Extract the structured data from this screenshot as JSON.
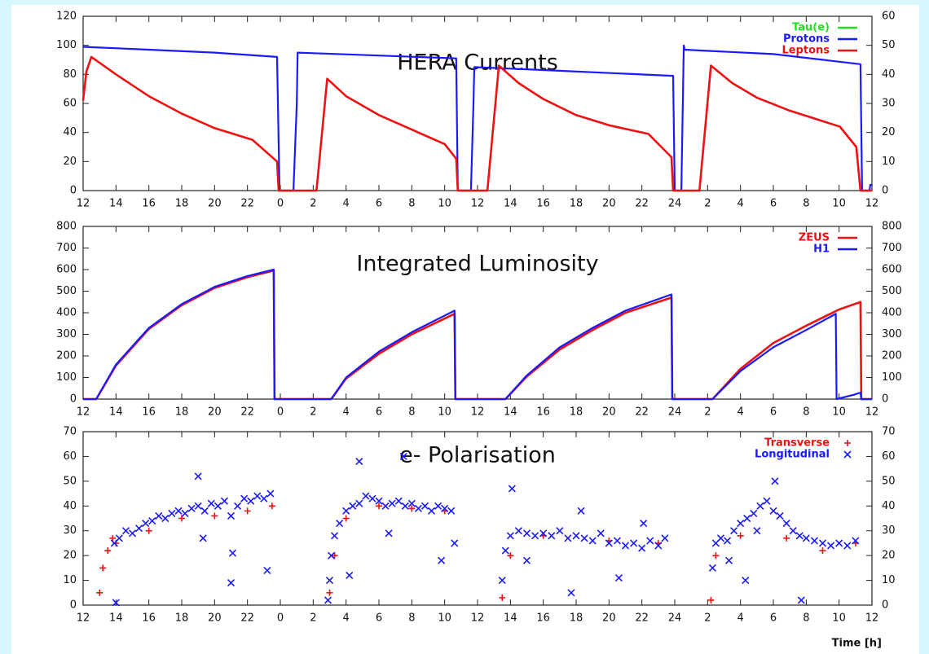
{
  "chart_data": [
    {
      "type": "line",
      "title": "HERA Currents",
      "legend": "top-right",
      "xlim": [
        12,
        60
      ],
      "xticks": [
        {
          "value": 12,
          "label": "12"
        },
        {
          "value": 14,
          "label": "14"
        },
        {
          "value": 16,
          "label": "16"
        },
        {
          "value": 18,
          "label": "18"
        },
        {
          "value": 20,
          "label": "20"
        },
        {
          "value": 22,
          "label": "22"
        },
        {
          "value": 24,
          "label": "0"
        },
        {
          "value": 26,
          "label": "2"
        },
        {
          "value": 28,
          "label": "4"
        },
        {
          "value": 30,
          "label": "6"
        },
        {
          "value": 32,
          "label": "8"
        },
        {
          "value": 34,
          "label": "10"
        },
        {
          "value": 36,
          "label": "12"
        },
        {
          "value": 38,
          "label": "14"
        },
        {
          "value": 40,
          "label": "16"
        },
        {
          "value": 42,
          "label": "18"
        },
        {
          "value": 44,
          "label": "20"
        },
        {
          "value": 46,
          "label": "22"
        },
        {
          "value": 48,
          "label": "24"
        },
        {
          "value": 50,
          "label": "2"
        },
        {
          "value": 52,
          "label": "4"
        },
        {
          "value": 54,
          "label": "6"
        },
        {
          "value": 56,
          "label": "8"
        },
        {
          "value": 58,
          "label": "10"
        },
        {
          "value": 60,
          "label": "12"
        }
      ],
      "ylim": [
        0,
        120
      ],
      "yticks": [
        0,
        20,
        40,
        60,
        80,
        100,
        120
      ],
      "y2lim": [
        0,
        60
      ],
      "y2ticks": [
        0,
        10,
        20,
        30,
        40,
        50,
        60
      ],
      "series": [
        {
          "name": "Tau(e)",
          "color": "#22dd22",
          "x": [],
          "values": []
        },
        {
          "name": "Protons",
          "color": "#1a1aff",
          "x": [
            12,
            16,
            20,
            23.8,
            23.95,
            24.8,
            25.0,
            25.05,
            30,
            34.7,
            34.8,
            35.6,
            35.75,
            35.8,
            40,
            47.9,
            48.0,
            48.4,
            48.55,
            48.6,
            54,
            59.3,
            59.4,
            59.85,
            59.9,
            60
          ],
          "values": [
            99,
            97,
            95,
            92,
            0,
            0,
            60,
            95,
            93,
            91,
            0,
            0,
            60,
            85,
            83,
            79,
            0,
            0,
            100,
            97,
            94,
            87,
            0,
            0,
            4,
            4
          ]
        },
        {
          "name": "Leptons",
          "color": "#ee1111",
          "x": [
            12,
            12.2,
            12.5,
            14,
            16,
            18,
            20,
            22.3,
            23.8,
            23.9,
            26.2,
            26.85,
            28,
            30,
            32,
            34,
            34.7,
            34.8,
            36.6,
            37.3,
            38.5,
            40,
            42,
            44,
            46.4,
            47.8,
            47.9,
            49.5,
            50.2,
            51.5,
            53,
            55,
            58.05,
            59.05,
            59.3,
            60
          ],
          "values": [
            62,
            82,
            92,
            80,
            65,
            53,
            43,
            35,
            20,
            0,
            0,
            77,
            65,
            52,
            42,
            32,
            22,
            0,
            0,
            86,
            74,
            63,
            52,
            45,
            39,
            23,
            0,
            0,
            86,
            74,
            64,
            55,
            44,
            30,
            0,
            0
          ]
        }
      ]
    },
    {
      "type": "line",
      "title": "Integrated Luminosity",
      "legend": "top-right",
      "mirror_yticks": true,
      "xlim": [
        12,
        60
      ],
      "xticks": [
        {
          "value": 12,
          "label": "12"
        },
        {
          "value": 14,
          "label": "14"
        },
        {
          "value": 16,
          "label": "16"
        },
        {
          "value": 18,
          "label": "18"
        },
        {
          "value": 20,
          "label": "20"
        },
        {
          "value": 22,
          "label": "22"
        },
        {
          "value": 24,
          "label": "0"
        },
        {
          "value": 26,
          "label": "2"
        },
        {
          "value": 28,
          "label": "4"
        },
        {
          "value": 30,
          "label": "6"
        },
        {
          "value": 32,
          "label": "8"
        },
        {
          "value": 34,
          "label": "10"
        },
        {
          "value": 36,
          "label": "12"
        },
        {
          "value": 38,
          "label": "14"
        },
        {
          "value": 40,
          "label": "16"
        },
        {
          "value": 42,
          "label": "18"
        },
        {
          "value": 44,
          "label": "20"
        },
        {
          "value": 46,
          "label": "22"
        },
        {
          "value": 48,
          "label": "24"
        },
        {
          "value": 50,
          "label": "2"
        },
        {
          "value": 52,
          "label": "4"
        },
        {
          "value": 54,
          "label": "6"
        },
        {
          "value": 56,
          "label": "8"
        },
        {
          "value": 58,
          "label": "10"
        },
        {
          "value": 60,
          "label": "12"
        }
      ],
      "ylim": [
        0,
        800
      ],
      "yticks": [
        0,
        100,
        200,
        300,
        400,
        500,
        600,
        700,
        800
      ],
      "series": [
        {
          "name": "ZEUS",
          "color": "#ee1111",
          "x": [
            12,
            12.8,
            14,
            16,
            18,
            20,
            22,
            23.6,
            23.65,
            27.1,
            28,
            30,
            32,
            34.6,
            34.65,
            37.7,
            39,
            41,
            43,
            45,
            47.8,
            47.85,
            50.3,
            52,
            54,
            56,
            58,
            59.3,
            59.35,
            60
          ],
          "values": [
            0,
            0,
            155,
            325,
            435,
            515,
            565,
            595,
            0,
            0,
            95,
            210,
            300,
            395,
            0,
            0,
            105,
            230,
            320,
            400,
            470,
            0,
            0,
            140,
            260,
            340,
            415,
            450,
            0,
            0
          ]
        },
        {
          "name": "H1",
          "color": "#1a1aff",
          "x": [
            12,
            12.8,
            14,
            16,
            18,
            20,
            22,
            23.6,
            23.65,
            27.1,
            28,
            30,
            32,
            34.6,
            34.65,
            37.7,
            39,
            41,
            43,
            45,
            47.8,
            47.85,
            50.3,
            52,
            54,
            56,
            57.8,
            57.85,
            58.9,
            59.3,
            59.35,
            60
          ],
          "values": [
            0,
            0,
            160,
            330,
            440,
            520,
            570,
            600,
            0,
            0,
            100,
            220,
            310,
            410,
            0,
            0,
            110,
            240,
            330,
            410,
            485,
            0,
            0,
            130,
            240,
            320,
            395,
            0,
            20,
            30,
            0,
            0
          ]
        }
      ]
    },
    {
      "type": "scatter",
      "title": "e- Polarisation",
      "legend": "top-right",
      "mirror_yticks": true,
      "xlabel": "Time [h]",
      "xlim": [
        12,
        60
      ],
      "xticks": [
        {
          "value": 12,
          "label": "12"
        },
        {
          "value": 14,
          "label": "14"
        },
        {
          "value": 16,
          "label": "16"
        },
        {
          "value": 18,
          "label": "18"
        },
        {
          "value": 20,
          "label": "20"
        },
        {
          "value": 22,
          "label": "22"
        },
        {
          "value": 24,
          "label": "0"
        },
        {
          "value": 26,
          "label": "2"
        },
        {
          "value": 28,
          "label": "4"
        },
        {
          "value": 30,
          "label": "6"
        },
        {
          "value": 32,
          "label": "8"
        },
        {
          "value": 34,
          "label": "10"
        },
        {
          "value": 36,
          "label": "12"
        },
        {
          "value": 38,
          "label": "14"
        },
        {
          "value": 40,
          "label": "16"
        },
        {
          "value": 42,
          "label": "18"
        },
        {
          "value": 44,
          "label": "20"
        },
        {
          "value": 46,
          "label": "22"
        },
        {
          "value": 48,
          "label": "24"
        },
        {
          "value": 50,
          "label": "2"
        },
        {
          "value": 52,
          "label": "4"
        },
        {
          "value": 54,
          "label": "6"
        },
        {
          "value": 56,
          "label": "8"
        },
        {
          "value": 58,
          "label": "10"
        },
        {
          "value": 60,
          "label": "12"
        }
      ],
      "ylim": [
        0,
        70
      ],
      "yticks": [
        0,
        10,
        20,
        30,
        40,
        50,
        60,
        70
      ],
      "series": [
        {
          "name": "Transverse",
          "color": "#ee1111",
          "marker": "plus",
          "x": [
            13,
            13.2,
            13.5,
            13.8,
            14,
            16,
            18,
            20,
            22,
            23.5,
            27,
            27.3,
            28,
            30,
            32,
            34,
            37.5,
            38,
            40,
            44,
            47,
            50.2,
            50.5,
            52,
            54.8,
            57,
            59
          ],
          "values": [
            5,
            15,
            22,
            27,
            25,
            30,
            35,
            36,
            38,
            40,
            5,
            20,
            35,
            40,
            39,
            38,
            3,
            20,
            28,
            26,
            25,
            2,
            20,
            28,
            27,
            22,
            25
          ]
        },
        {
          "name": "Longitudinal",
          "color": "#1a1aff",
          "marker": "cross",
          "x": [
            13.9,
            14.2,
            14.6,
            15,
            15.4,
            15.8,
            16.2,
            16.6,
            17,
            17.4,
            17.8,
            18.2,
            18.6,
            19,
            19.4,
            19.8,
            20.2,
            20.6,
            21,
            21.4,
            21.8,
            22.2,
            22.6,
            23,
            23.4,
            19,
            21,
            23.2,
            14,
            21.1,
            19.3,
            26.9,
            27,
            27.1,
            27.3,
            27.6,
            28,
            28.4,
            28.8,
            29.2,
            29.6,
            30,
            30.4,
            30.8,
            31.2,
            31.6,
            32,
            32.4,
            32.8,
            33.2,
            33.6,
            34,
            34.4,
            28.8,
            31.5,
            30.6,
            33.8,
            28.2,
            34.6,
            37.5,
            37.7,
            38,
            38.5,
            39,
            39.5,
            40,
            40.5,
            41,
            41.5,
            42,
            42.5,
            43,
            43.5,
            44,
            44.5,
            45,
            45.5,
            46,
            46.5,
            47,
            47.4,
            38.1,
            42.3,
            39,
            44.6,
            41.7,
            46.1,
            50.3,
            50.5,
            50.8,
            51.2,
            51.6,
            52,
            52.4,
            52.8,
            53.2,
            53.6,
            54,
            54.4,
            54.8,
            55.2,
            55.6,
            56,
            56.5,
            57,
            57.5,
            58,
            58.5,
            59,
            54.1,
            53,
            52.3,
            55.7,
            51.3
          ],
          "values": [
            25,
            27,
            30,
            29,
            31,
            33,
            34,
            36,
            35,
            37,
            38,
            37,
            39,
            40,
            38,
            41,
            40,
            42,
            36,
            40,
            43,
            42,
            44,
            43,
            45,
            52,
            9,
            14,
            1,
            21,
            27,
            2,
            10,
            20,
            28,
            33,
            38,
            40,
            41,
            44,
            43,
            42,
            40,
            41,
            42,
            40,
            41,
            39,
            40,
            38,
            40,
            39,
            38,
            58,
            60,
            29,
            18,
            12,
            25,
            10,
            22,
            28,
            30,
            29,
            28,
            29,
            28,
            30,
            27,
            28,
            27,
            26,
            29,
            25,
            26,
            24,
            25,
            23,
            26,
            24,
            27,
            47,
            38,
            18,
            11,
            5,
            33,
            15,
            25,
            27,
            26,
            30,
            33,
            35,
            37,
            40,
            42,
            38,
            36,
            33,
            30,
            28,
            27,
            26,
            25,
            24,
            25,
            24,
            26,
            50,
            30,
            10,
            2,
            18
          ]
        }
      ]
    }
  ]
}
